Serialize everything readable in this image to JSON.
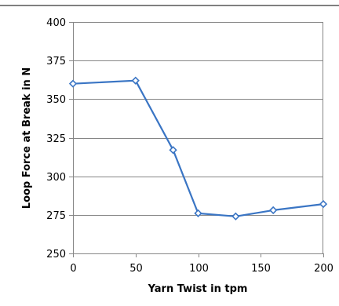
{
  "chart_data": {
    "type": "line",
    "title": "",
    "xlabel": "Yarn Twist in tpm",
    "ylabel": "Loop Force at Break in N",
    "xlim": [
      0,
      200
    ],
    "ylim": [
      250,
      400
    ],
    "x_ticks": [
      0,
      50,
      100,
      150,
      200
    ],
    "y_ticks": [
      250,
      275,
      300,
      325,
      350,
      375,
      400
    ],
    "grid": {
      "horizontal": true,
      "vertical": false
    },
    "legend": "none",
    "series": [
      {
        "color": "#3A75C4",
        "marker": "diamond-open",
        "points": [
          {
            "x": 0,
            "y": 360
          },
          {
            "x": 50,
            "y": 362
          },
          {
            "x": 80,
            "y": 317
          },
          {
            "x": 100,
            "y": 276
          },
          {
            "x": 130,
            "y": 274
          },
          {
            "x": 160,
            "y": 278
          },
          {
            "x": 200,
            "y": 282
          }
        ]
      }
    ]
  },
  "colors": {
    "top_rule": "#808080",
    "gridline": "#868686",
    "axis": "#868686",
    "text": "#000000"
  }
}
